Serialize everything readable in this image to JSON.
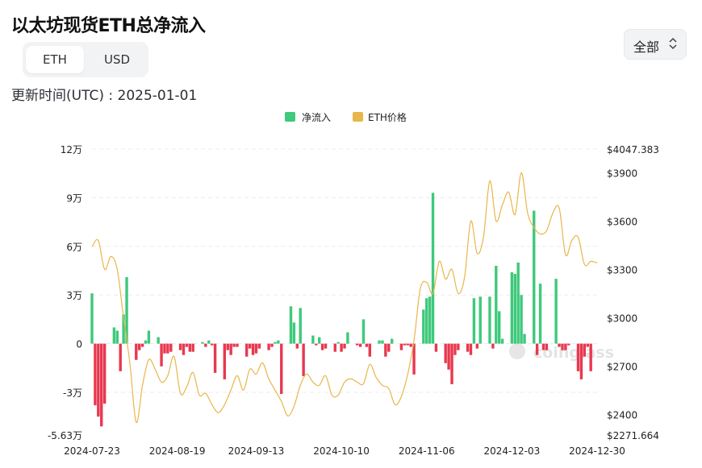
{
  "header": {
    "title": "以太坊现货ETH总净流入",
    "unit_tabs": [
      "ETH",
      "USD"
    ],
    "active_tab": "ETH",
    "updated_label": "更新时间(UTC) : 2025-01-01",
    "range_label": "全部"
  },
  "chart_data": {
    "type": "bar",
    "title": "",
    "legend": [
      {
        "name": "净流入",
        "color": "#3ec97b"
      },
      {
        "name": "ETH价格",
        "color": "#e8b64a"
      }
    ],
    "legend_position": "top-center",
    "grid": true,
    "positive_color": "#3ec97b",
    "negative_color": "#e8384f",
    "price_color": "#e8b64a",
    "left_axis": {
      "ticks": [
        {
          "value": 120000,
          "label": "12万"
        },
        {
          "value": 90000,
          "label": "9万"
        },
        {
          "value": 60000,
          "label": "6万"
        },
        {
          "value": 30000,
          "label": "3万"
        },
        {
          "value": 0,
          "label": "0"
        },
        {
          "value": -30000,
          "label": "-3万"
        },
        {
          "value": -56300,
          "label": "-5.63万"
        }
      ],
      "ylim": [
        -56300,
        120000
      ]
    },
    "right_axis": {
      "ticks": [
        {
          "value": 4047.383,
          "label": "$4047.383"
        },
        {
          "value": 3900,
          "label": "$3900"
        },
        {
          "value": 3600,
          "label": "$3600"
        },
        {
          "value": 3300,
          "label": "$3300"
        },
        {
          "value": 3000,
          "label": "$3000"
        },
        {
          "value": 2700,
          "label": "$2700"
        },
        {
          "value": 2400,
          "label": "$2400"
        },
        {
          "value": 2271.664,
          "label": "$2271.664"
        }
      ],
      "ylim": [
        2271.664,
        4047.383
      ]
    },
    "x_tick_labels": [
      "2024-07-23",
      "2024-08-19",
      "2024-09-13",
      "2024-10-10",
      "2024-11-06",
      "2024-12-03",
      "2024-12-30"
    ],
    "x_tick_days": [
      0,
      27,
      52,
      79,
      106,
      133,
      160
    ],
    "x_day_range": [
      0,
      160
    ],
    "series": [
      {
        "name": "净流入",
        "days": [
          0,
          1,
          2,
          3,
          4,
          7,
          8,
          9,
          10,
          11,
          14,
          15,
          16,
          17,
          18,
          21,
          22,
          23,
          24,
          25,
          28,
          29,
          30,
          31,
          32,
          35,
          36,
          37,
          38,
          39,
          42,
          43,
          44,
          45,
          46,
          49,
          50,
          51,
          52,
          53,
          56,
          57,
          58,
          59,
          60,
          63,
          64,
          65,
          66,
          67,
          70,
          71,
          72,
          73,
          74,
          77,
          78,
          79,
          80,
          81,
          84,
          85,
          86,
          87,
          88,
          91,
          92,
          93,
          94,
          95,
          98,
          99,
          100,
          101,
          102,
          105,
          106,
          107,
          108,
          109,
          112,
          113,
          114,
          115,
          116,
          119,
          120,
          121,
          122,
          123,
          126,
          127,
          128,
          129,
          130,
          133,
          134,
          135,
          136,
          137,
          140,
          141,
          142,
          143,
          144,
          147,
          148,
          149,
          150,
          151,
          154,
          155,
          156,
          157,
          158
        ],
        "values": [
          31000,
          -38000,
          -45000,
          -51000,
          -37000,
          10000,
          8000,
          -17000,
          18000,
          41000,
          -10000,
          -4000,
          -2000,
          2000,
          8000,
          4000,
          -14000,
          -6000,
          -6000,
          -5000,
          -4000,
          -7000,
          -2000,
          -5000,
          -5000,
          1000,
          -2000,
          2000,
          -1000,
          -18000,
          -22000,
          -4000,
          -7000,
          -2000,
          -2000,
          -8000,
          -3000,
          -7000,
          -6000,
          -3000,
          -4000,
          -2000,
          1000,
          2000,
          -31000,
          23000,
          13000,
          -3000,
          22000,
          -20000,
          5000,
          -1000,
          4000,
          -4000,
          -3000,
          -5000,
          1000,
          -5000,
          -3000,
          7000,
          -1000,
          -2000,
          15000,
          -2000,
          -8000,
          2000,
          2000,
          -8000,
          -5000,
          3000,
          -4000,
          -1000,
          -1000,
          -2000,
          -19000,
          21000,
          28000,
          29000,
          93000,
          -5000,
          -12000,
          -16000,
          -25000,
          -7000,
          -4000,
          -5000,
          -7000,
          28000,
          -3000,
          29000,
          29000,
          -3000,
          48000,
          20000,
          3000,
          44000,
          43000,
          50000,
          30000,
          6000,
          82000,
          -7000,
          37000,
          -4000,
          -4000,
          40000,
          -2000,
          -4000,
          -4000,
          -1000,
          -17000,
          -22000,
          -8000,
          -2000,
          -17000
        ]
      },
      {
        "name": "ETH价格",
        "days": [
          0,
          2,
          4,
          6,
          8,
          10,
          12,
          14,
          16,
          18,
          20,
          22,
          24,
          26,
          28,
          30,
          32,
          34,
          36,
          38,
          40,
          42,
          44,
          46,
          48,
          50,
          52,
          54,
          56,
          58,
          60,
          62,
          64,
          66,
          68,
          70,
          72,
          74,
          76,
          78,
          80,
          82,
          84,
          86,
          88,
          90,
          92,
          94,
          96,
          98,
          100,
          102,
          104,
          106,
          108,
          110,
          112,
          114,
          116,
          118,
          120,
          122,
          124,
          126,
          128,
          130,
          132,
          134,
          136,
          138,
          140,
          142,
          144,
          146,
          148,
          150,
          152,
          154,
          156,
          158,
          160
        ],
        "values": [
          3440,
          3480,
          3300,
          3380,
          3300,
          3000,
          2720,
          2350,
          2580,
          2740,
          2680,
          2600,
          2640,
          2760,
          2530,
          2570,
          2660,
          2520,
          2530,
          2460,
          2410,
          2460,
          2550,
          2640,
          2550,
          2680,
          2650,
          2720,
          2620,
          2550,
          2480,
          2390,
          2450,
          2580,
          2650,
          2600,
          2580,
          2640,
          2520,
          2520,
          2600,
          2620,
          2600,
          2590,
          2710,
          2630,
          2580,
          2560,
          2460,
          2510,
          2650,
          2860,
          3180,
          3220,
          3150,
          3350,
          3240,
          3300,
          3150,
          3250,
          3600,
          3400,
          3500,
          3850,
          3600,
          3700,
          3780,
          3640,
          3900,
          3650,
          3560,
          3520,
          3540,
          3650,
          3680,
          3390,
          3480,
          3500,
          3330,
          3350,
          3340
        ]
      }
    ]
  },
  "watermark": "coinglass"
}
